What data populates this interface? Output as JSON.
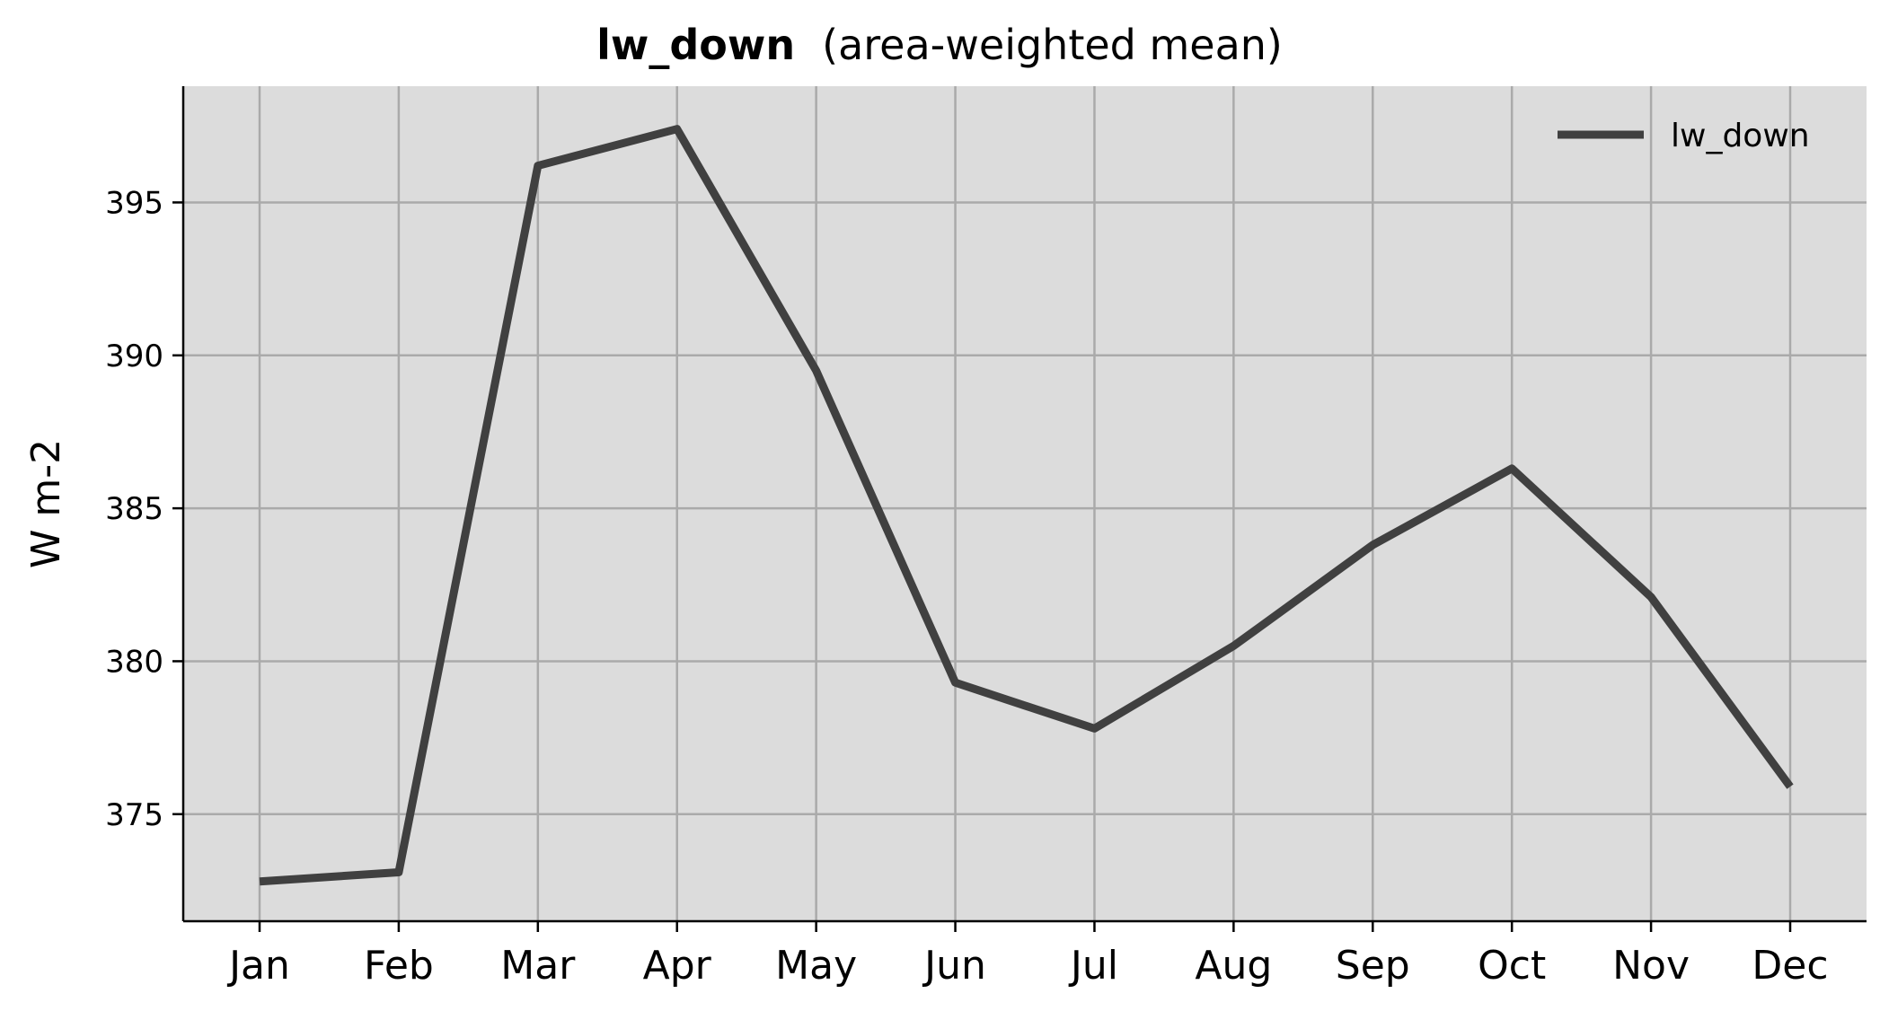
{
  "chart_data": {
    "type": "line",
    "title_var": "lw_down",
    "title_rest": "(area-weighted mean)",
    "xlabel": "",
    "ylabel": "W m-2",
    "categories": [
      "Jan",
      "Feb",
      "Mar",
      "Apr",
      "May",
      "Jun",
      "Jul",
      "Aug",
      "Sep",
      "Oct",
      "Nov",
      "Dec"
    ],
    "series": [
      {
        "name": "lw_down",
        "color": "#404040",
        "values": [
          372.8,
          373.1,
          396.2,
          397.4,
          389.5,
          379.3,
          377.8,
          380.5,
          383.8,
          386.3,
          382.1,
          375.9
        ]
      }
    ],
    "ylim": [
      371.5,
      398.8
    ],
    "yticks": [
      375,
      380,
      385,
      390,
      395
    ],
    "grid": true,
    "legend_position": "top-right",
    "background_color": "#dcdcdc",
    "grid_color": "#aaaaaa"
  }
}
